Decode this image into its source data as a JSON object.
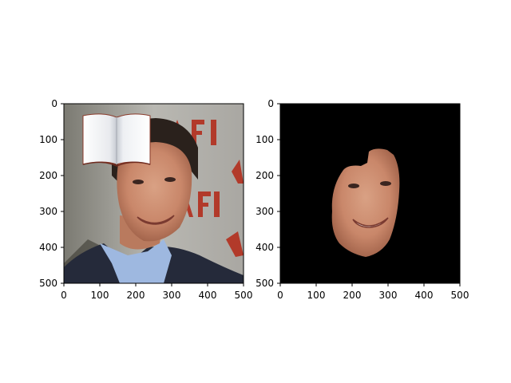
{
  "panels": [
    {
      "name": "original-photo",
      "description_overlay": "book icon overlay",
      "x_ticks": [
        "0",
        "100",
        "200",
        "300",
        "400",
        "500"
      ],
      "y_ticks": [
        "0",
        "100",
        "200",
        "300",
        "400",
        "500"
      ]
    },
    {
      "name": "masked-face",
      "x_ticks": [
        "0",
        "100",
        "200",
        "300",
        "400",
        "500"
      ],
      "y_ticks": [
        "0",
        "100",
        "200",
        "300",
        "400",
        "500"
      ]
    }
  ],
  "colors": {
    "mask_background": "#000000",
    "frame": "#000000"
  }
}
